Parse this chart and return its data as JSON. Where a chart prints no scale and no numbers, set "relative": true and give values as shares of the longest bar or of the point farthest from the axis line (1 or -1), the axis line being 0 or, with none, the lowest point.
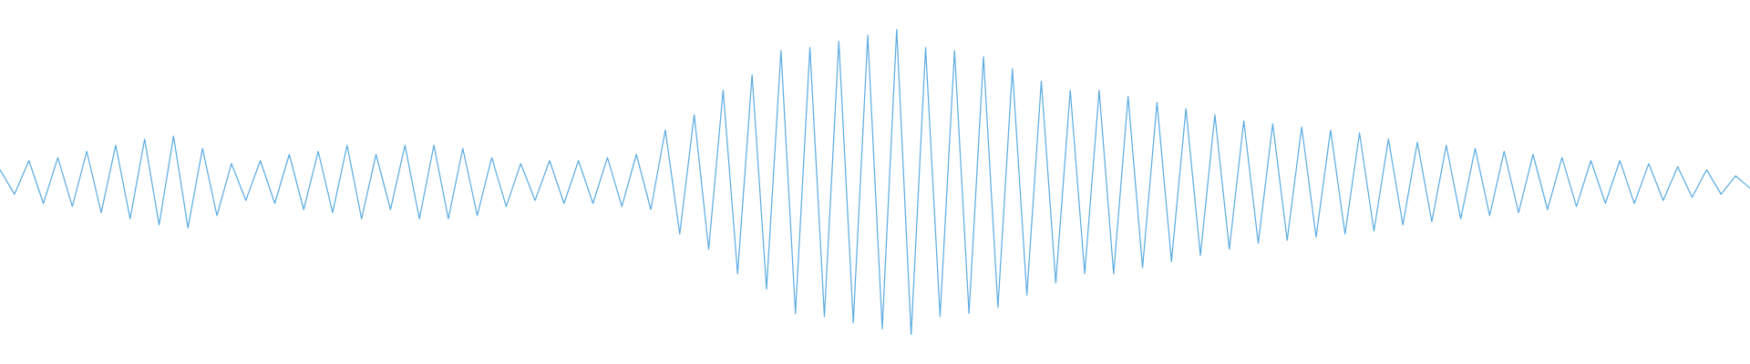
{
  "chart_data": {
    "type": "line",
    "relative": true,
    "categories": [
      null,
      null,
      null,
      null,
      null,
      null,
      null,
      null,
      null,
      null,
      null,
      null,
      null,
      null,
      null,
      null,
      null,
      null,
      null,
      null,
      null,
      null,
      null,
      null,
      null,
      null,
      null,
      null,
      null,
      null,
      null,
      null,
      null,
      null,
      null,
      null,
      null,
      null,
      null,
      null,
      null,
      null,
      null,
      null,
      null,
      null,
      null,
      null,
      null,
      null,
      null,
      null,
      null,
      null,
      null,
      null,
      null,
      null,
      null,
      null,
      null,
      null,
      null,
      null,
      null,
      null,
      null,
      null,
      null,
      null,
      null,
      null,
      null,
      null,
      null,
      null,
      null,
      null,
      null,
      null,
      null,
      null,
      null,
      null,
      null,
      null,
      null,
      null,
      null,
      null,
      null,
      null,
      null,
      null,
      null,
      null,
      null,
      null,
      null,
      null,
      null,
      null,
      null,
      null,
      null,
      null,
      null,
      null,
      null,
      null,
      null,
      null,
      null,
      null,
      null,
      null,
      null,
      null,
      null,
      null,
      null,
      null
    ],
    "series": [
      {
        "color": "#5dade2",
        "values": [
          0.54,
          0.46,
          0.57,
          0.43,
          0.58,
          0.42,
          0.6,
          0.4,
          0.62,
          0.38,
          0.64,
          0.36,
          0.65,
          0.35,
          0.61,
          0.39,
          0.56,
          0.44,
          0.57,
          0.43,
          0.59,
          0.41,
          0.6,
          0.4,
          0.62,
          0.38,
          0.59,
          0.41,
          0.62,
          0.38,
          0.62,
          0.38,
          0.61,
          0.39,
          0.58,
          0.42,
          0.56,
          0.44,
          0.57,
          0.43,
          0.57,
          0.43,
          0.58,
          0.42,
          0.59,
          0.41,
          0.67,
          0.33,
          0.72,
          0.28,
          0.8,
          0.2,
          0.85,
          0.15,
          0.93,
          0.07,
          0.94,
          0.06,
          0.96,
          0.04,
          0.98,
          0.02,
          1,
          0,
          0.94,
          0.06,
          0.93,
          0.07,
          0.91,
          0.09,
          0.87,
          0.13,
          0.83,
          0.17,
          0.8,
          0.2,
          0.8,
          0.2,
          0.78,
          0.22,
          0.76,
          0.24,
          0.74,
          0.26,
          0.72,
          0.28,
          0.7,
          0.3,
          0.69,
          0.31,
          0.68,
          0.32,
          0.67,
          0.33,
          0.66,
          0.34,
          0.64,
          0.36,
          0.63,
          0.37,
          0.62,
          0.38,
          0.61,
          0.39,
          0.6,
          0.4,
          0.59,
          0.41,
          0.58,
          0.42,
          0.57,
          0.43,
          0.57,
          0.43,
          0.56,
          0.44,
          0.55,
          0.45,
          0.54,
          0.46,
          0.52,
          0.48
        ]
      }
    ]
  }
}
